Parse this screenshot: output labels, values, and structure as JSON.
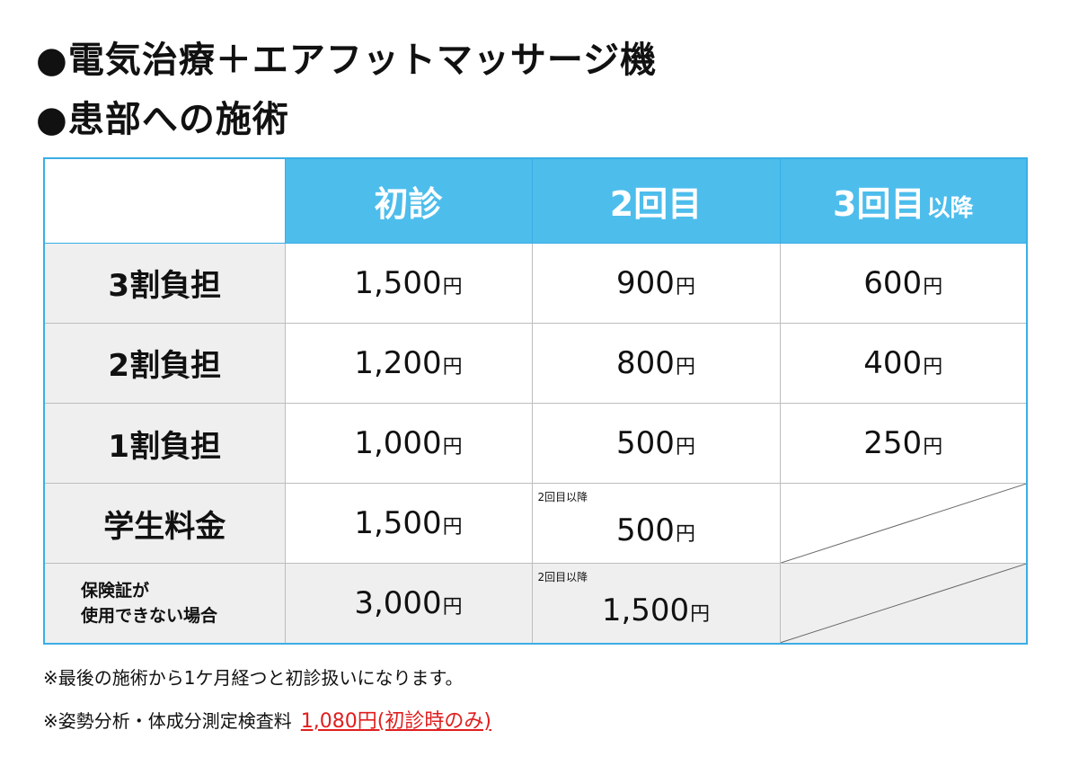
{
  "titles": [
    "●電気治療＋エアフットマッサージ機",
    "●患部への施術"
  ],
  "table": {
    "headers": [
      {
        "main": "初診",
        "suffix": ""
      },
      {
        "main": "2回目",
        "suffix": ""
      },
      {
        "main": "3回目",
        "suffix": "以降"
      }
    ],
    "rows": [
      {
        "label": "3割負担",
        "values": [
          "1,500",
          "900",
          "600"
        ]
      },
      {
        "label": "2割負担",
        "values": [
          "1,200",
          "800",
          "400"
        ]
      },
      {
        "label": "1割負担",
        "values": [
          "1,000",
          "500",
          "250"
        ]
      },
      {
        "label": "学生料金",
        "values": [
          "1,500",
          "500"
        ],
        "note": "2回目以降"
      },
      {
        "label_lines": [
          "保険証が",
          "使用できない場合"
        ],
        "values": [
          "3,000",
          "1,500"
        ],
        "note": "2回目以降"
      }
    ],
    "currency": "円"
  },
  "footnotes": {
    "line1": "※最後の施術から1ケ月経つと初診扱いになります。",
    "line2_prefix": "※姿勢分析・体成分測定検査料",
    "line2_highlight": "1,080円(初診時のみ)",
    "highlight_color": "#e01e1e"
  },
  "colors": {
    "header_blue": "#4dbdec",
    "border_blue": "#39aee6",
    "label_gray": "#efefef"
  }
}
